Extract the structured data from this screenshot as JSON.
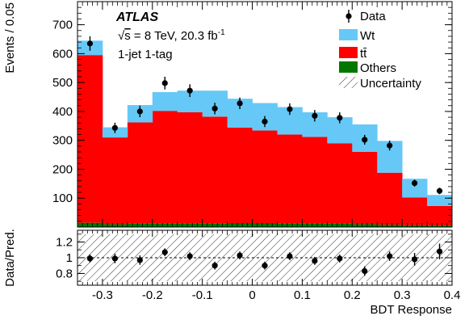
{
  "experiment": "ATLAS",
  "energy_line": {
    "root": "s",
    "text": " = 8 TeV, 20.3 fb",
    "sup": "-1"
  },
  "category": "1-jet 1-tag",
  "colors": {
    "wt": "#66c8f7",
    "ttbar": "#ff0000",
    "others": "#007700",
    "data": "#000000"
  },
  "chart_data": [
    {
      "type": "bar",
      "stacked": true,
      "ylabel": "Events / 0.05",
      "xlabel": "",
      "ylim": [
        0,
        780
      ],
      "xlim": [
        -0.35,
        0.4
      ],
      "yticks": [
        100,
        200,
        300,
        400,
        500,
        600,
        700
      ],
      "bin_edges": [
        -0.35,
        -0.3,
        -0.25,
        -0.2,
        -0.15,
        -0.1,
        -0.05,
        0.0,
        0.05,
        0.1,
        0.15,
        0.2,
        0.25,
        0.3,
        0.35,
        0.4
      ],
      "legend": {
        "position": "top-right",
        "entries": [
          "Data",
          "Wt",
          "tt̄",
          "Others",
          "Uncertainty"
        ]
      },
      "series": [
        {
          "name": "Others",
          "values": [
            15,
            10,
            12,
            12,
            12,
            12,
            14,
            14,
            12,
            12,
            12,
            10,
            8,
            6,
            5
          ]
        },
        {
          "name": "tt̄",
          "values": [
            580,
            300,
            350,
            390,
            385,
            370,
            330,
            320,
            308,
            300,
            278,
            250,
            180,
            96,
            68
          ]
        },
        {
          "name": "Wt",
          "values": [
            50,
            35,
            60,
            65,
            75,
            90,
            100,
            95,
            95,
            85,
            90,
            95,
            110,
            65,
            38
          ]
        }
      ],
      "data": {
        "name": "Data",
        "x": [
          -0.325,
          -0.275,
          -0.225,
          -0.175,
          -0.125,
          -0.075,
          -0.025,
          0.025,
          0.075,
          0.125,
          0.175,
          0.225,
          0.275,
          0.325,
          0.375
        ],
        "y": [
          635,
          343,
          400,
          498,
          472,
          410,
          428,
          365,
          408,
          385,
          378,
          302,
          282,
          152,
          125
        ],
        "err": [
          25,
          18,
          20,
          22,
          22,
          20,
          20,
          19,
          20,
          20,
          19,
          17,
          17,
          12,
          11
        ]
      }
    },
    {
      "type": "scatter",
      "ylabel": "Data/Pred.",
      "xlabel": "BDT Response",
      "ylim": [
        0.65,
        1.35
      ],
      "xlim": [
        -0.35,
        0.4
      ],
      "yticks": [
        0.8,
        1,
        1.2
      ],
      "xticks": [
        -0.3,
        -0.2,
        -0.1,
        0,
        0.1,
        0.2,
        0.3,
        0.4
      ],
      "reference_line": 1,
      "uncertainty_band": [
        0.7,
        1.3
      ],
      "x": [
        -0.325,
        -0.275,
        -0.225,
        -0.175,
        -0.125,
        -0.075,
        -0.025,
        0.025,
        0.075,
        0.125,
        0.175,
        0.225,
        0.275,
        0.325,
        0.375
      ],
      "y": [
        0.99,
        0.99,
        0.97,
        1.07,
        1.02,
        0.9,
        1.03,
        0.9,
        1.02,
        0.96,
        0.99,
        0.83,
        1.02,
        0.98,
        1.08
      ],
      "err": [
        0.05,
        0.06,
        0.06,
        0.05,
        0.05,
        0.05,
        0.05,
        0.05,
        0.05,
        0.05,
        0.05,
        0.06,
        0.06,
        0.08,
        0.1
      ]
    }
  ]
}
